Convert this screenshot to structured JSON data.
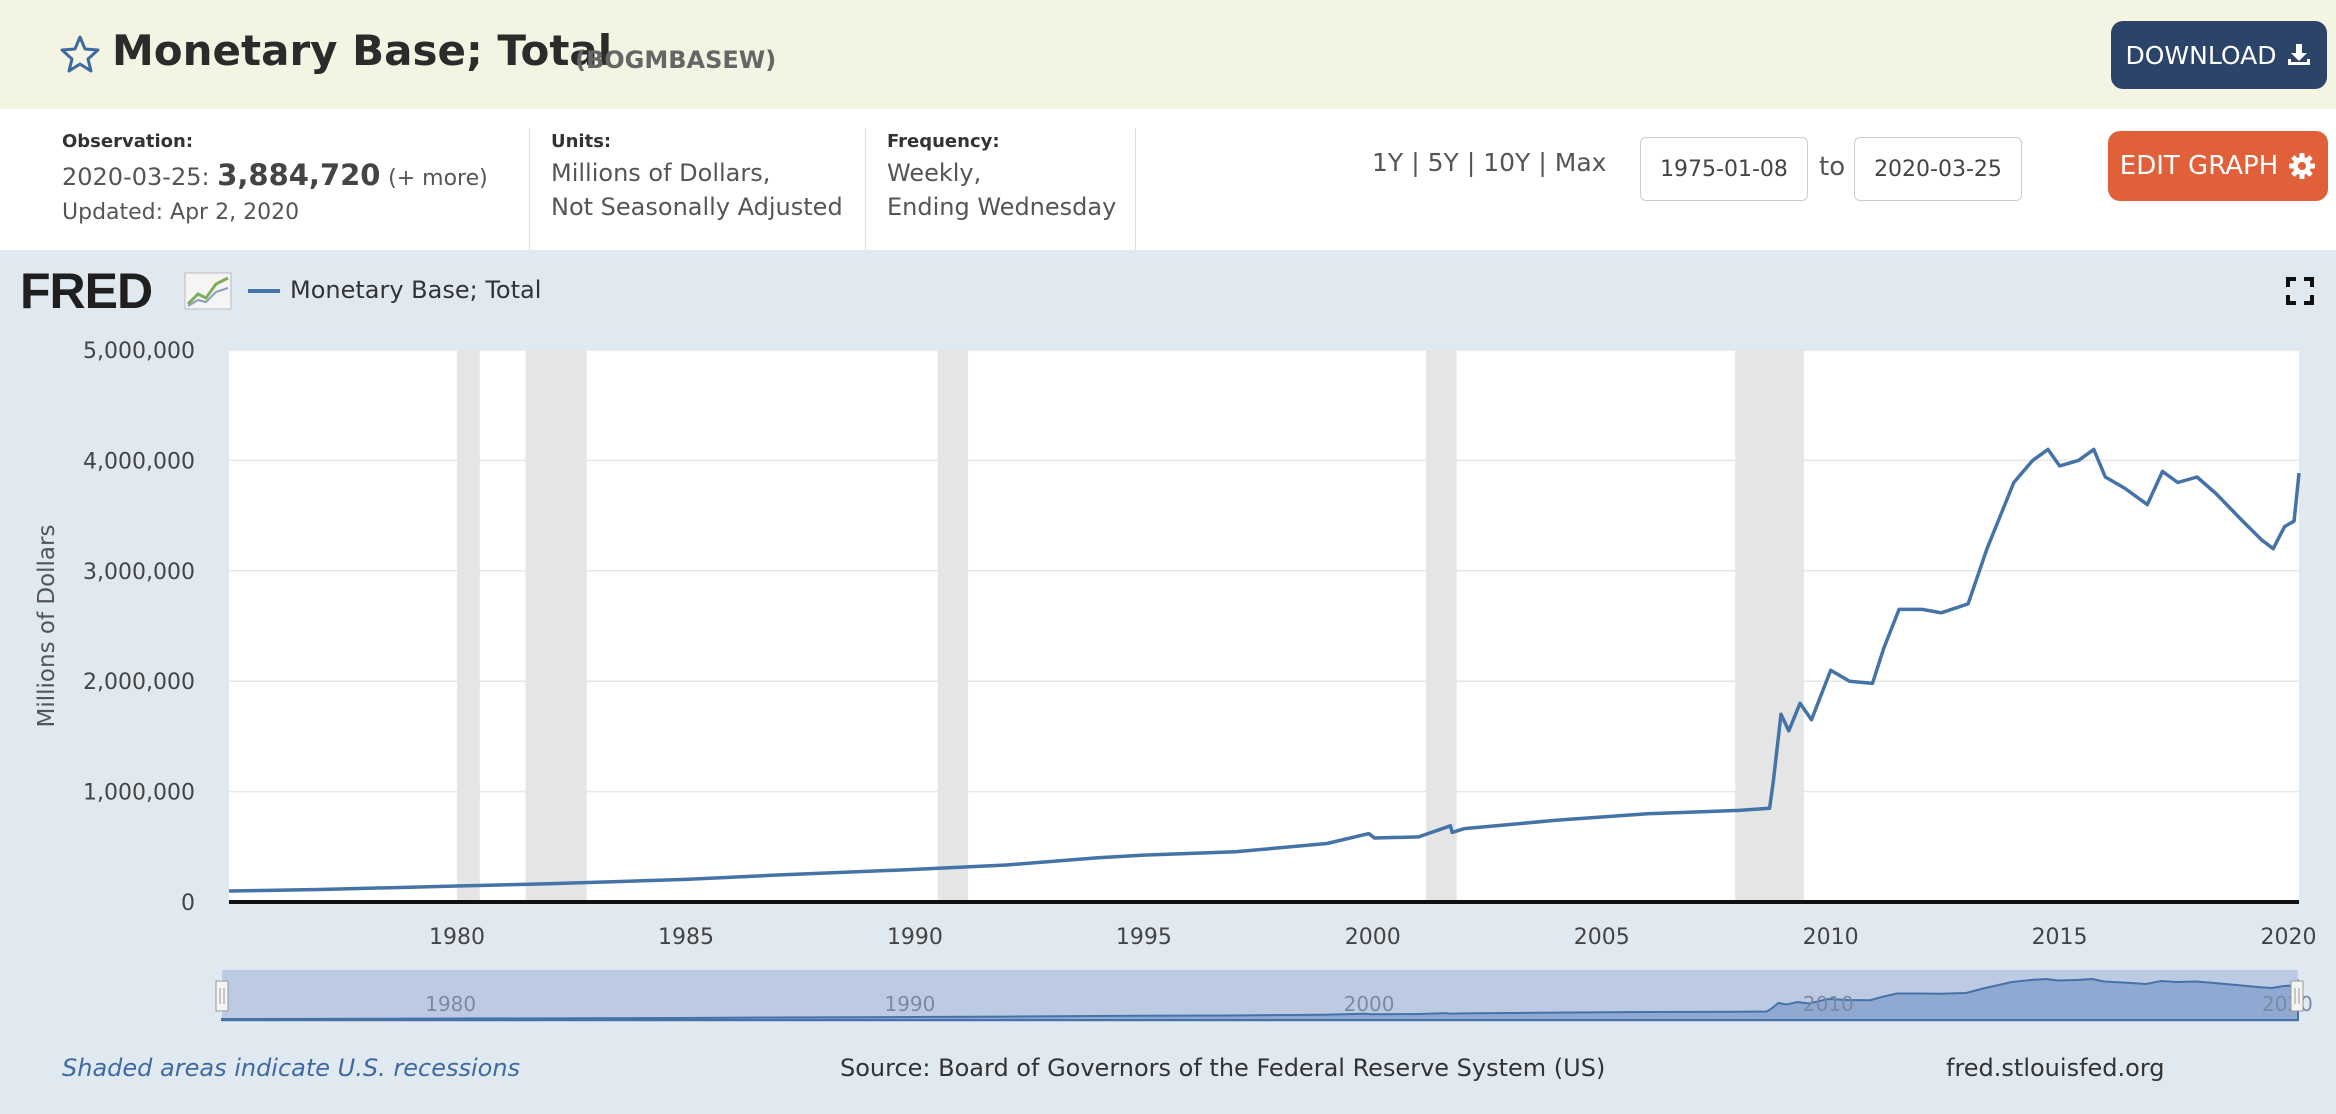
{
  "header": {
    "title": "Monetary Base; Total",
    "series_id": "(BOGMBASEW)",
    "download_label": "DOWNLOAD"
  },
  "meta": {
    "observation_heading": "Observation:",
    "observation_date": "2020-03-25:",
    "observation_value": "3,884,720",
    "observation_more": "(+ more)",
    "updated": "Updated: Apr 2, 2020",
    "units_heading": "Units:",
    "units_line1": "Millions of Dollars,",
    "units_line2": "Not Seasonally Adjusted",
    "frequency_heading": "Frequency:",
    "frequency_line1": "Weekly,",
    "frequency_line2": "Ending Wednesday"
  },
  "controls": {
    "range_1y": "1Y",
    "range_5y": "5Y",
    "range_10y": "10Y",
    "range_max": "Max",
    "separator": "|",
    "start_date": "1975-01-08",
    "to_label": "to",
    "end_date": "2020-03-25",
    "edit_label": "EDIT GRAPH"
  },
  "chart_panel": {
    "logo": "FRED",
    "legend_label": "Monetary Base; Total",
    "footer_note": "Shaded areas indicate U.S. recessions",
    "footer_source": "Source: Board of Governors of the Federal Reserve System (US)",
    "footer_site": "fred.stlouisfed.org"
  },
  "colors": {
    "line": "#4572a7",
    "recession": "#e5e5e5",
    "header_bg": "#f3f4e2",
    "panel_bg": "#e1e9f0",
    "download_bg": "#2c4469",
    "edit_bg": "#e0603a"
  },
  "chart_data": {
    "type": "line",
    "title": "",
    "xlabel": "",
    "ylabel": "Millions of Dollars",
    "xlim": [
      "1975-01-08",
      "2020-03-25"
    ],
    "ylim": [
      0,
      5000000
    ],
    "y_ticks": [
      0,
      1000000,
      2000000,
      3000000,
      4000000,
      5000000
    ],
    "y_tick_labels": [
      "0",
      "1,000,000",
      "2,000,000",
      "3,000,000",
      "4,000,000",
      "5,000,000"
    ],
    "x_ticks": [
      "1980",
      "1985",
      "1990",
      "1995",
      "2000",
      "2005",
      "2010",
      "2015",
      "2020"
    ],
    "grid": true,
    "legend": "top-left",
    "recessions": [
      [
        "1980-01-01",
        "1980-07-01"
      ],
      [
        "1981-07-01",
        "1982-11-01"
      ],
      [
        "1990-07-01",
        "1991-03-01"
      ],
      [
        "2001-03-01",
        "2001-11-01"
      ],
      [
        "2007-12-01",
        "2009-06-01"
      ]
    ],
    "navigator_ticks": [
      "1980",
      "1990",
      "2000",
      "2010",
      "2020"
    ],
    "series": [
      {
        "name": "Monetary Base; Total",
        "points": [
          [
            "1975-01-08",
            100000
          ],
          [
            "1977-01-01",
            113000
          ],
          [
            "1980-01-01",
            145000
          ],
          [
            "1982-01-01",
            165000
          ],
          [
            "1985-01-01",
            205000
          ],
          [
            "1987-01-01",
            245000
          ],
          [
            "1990-01-01",
            295000
          ],
          [
            "1992-01-01",
            335000
          ],
          [
            "1994-01-01",
            400000
          ],
          [
            "1995-01-01",
            425000
          ],
          [
            "1997-01-01",
            455000
          ],
          [
            "1999-01-01",
            530000
          ],
          [
            "1999-12-01",
            620000
          ],
          [
            "2000-01-15",
            580000
          ],
          [
            "2001-01-01",
            590000
          ],
          [
            "2001-09-12",
            690000
          ],
          [
            "2001-09-26",
            630000
          ],
          [
            "2002-01-01",
            665000
          ],
          [
            "2004-01-01",
            740000
          ],
          [
            "2006-01-01",
            800000
          ],
          [
            "2008-01-01",
            830000
          ],
          [
            "2008-09-01",
            850000
          ],
          [
            "2008-10-01",
            1100000
          ],
          [
            "2008-12-01",
            1700000
          ],
          [
            "2009-02-01",
            1550000
          ],
          [
            "2009-05-01",
            1800000
          ],
          [
            "2009-08-01",
            1650000
          ],
          [
            "2010-01-01",
            2100000
          ],
          [
            "2010-06-01",
            2000000
          ],
          [
            "2010-12-01",
            1980000
          ],
          [
            "2011-03-01",
            2300000
          ],
          [
            "2011-07-01",
            2650000
          ],
          [
            "2012-01-01",
            2650000
          ],
          [
            "2012-06-01",
            2620000
          ],
          [
            "2013-01-01",
            2700000
          ],
          [
            "2013-06-01",
            3200000
          ],
          [
            "2014-01-01",
            3800000
          ],
          [
            "2014-06-01",
            4000000
          ],
          [
            "2014-10-01",
            4100000
          ],
          [
            "2015-01-01",
            3950000
          ],
          [
            "2015-06-01",
            4000000
          ],
          [
            "2015-10-01",
            4100000
          ],
          [
            "2016-01-01",
            3850000
          ],
          [
            "2016-06-01",
            3750000
          ],
          [
            "2016-12-01",
            3600000
          ],
          [
            "2017-04-01",
            3900000
          ],
          [
            "2017-08-01",
            3800000
          ],
          [
            "2018-01-01",
            3850000
          ],
          [
            "2018-06-01",
            3700000
          ],
          [
            "2019-01-01",
            3450000
          ],
          [
            "2019-06-01",
            3280000
          ],
          [
            "2019-09-01",
            3200000
          ],
          [
            "2019-12-01",
            3400000
          ],
          [
            "2020-02-15",
            3450000
          ],
          [
            "2020-03-25",
            3884720
          ]
        ]
      }
    ]
  }
}
